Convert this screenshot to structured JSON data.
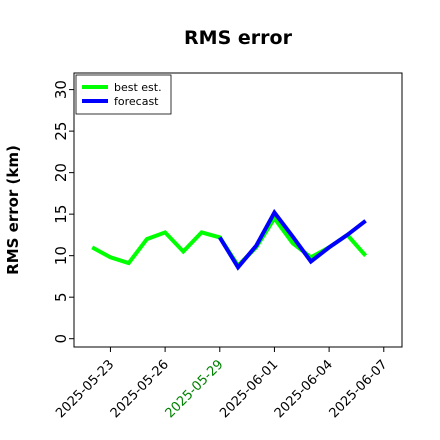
{
  "chart_data": {
    "type": "line",
    "title": "RMS error",
    "ylabel": "RMS error (km)",
    "xlabel": "",
    "ylim": [
      -1,
      32
    ],
    "xlim": [
      "2025-05-21",
      "2025-06-08"
    ],
    "yticks": [
      0,
      5,
      10,
      15,
      20,
      25,
      30
    ],
    "xticks": [
      {
        "date": "2025-05-23",
        "label": "2025-05-23",
        "color": "#000000"
      },
      {
        "date": "2025-05-26",
        "label": "2025-05-26",
        "color": "#000000"
      },
      {
        "date": "2025-05-29",
        "label": "2025-05-29",
        "color": "#008000"
      },
      {
        "date": "2025-06-01",
        "label": "2025-06-01",
        "color": "#000000"
      },
      {
        "date": "2025-06-04",
        "label": "2025-06-04",
        "color": "#000000"
      },
      {
        "date": "2025-06-07",
        "label": "2025-06-07",
        "color": "#000000"
      }
    ],
    "grid": false,
    "legend_position": "top-left",
    "series": [
      {
        "name": "best est.",
        "color": "#00ff00",
        "points": [
          {
            "x": "2025-05-22",
            "y": 11.0
          },
          {
            "x": "2025-05-23",
            "y": 9.8
          },
          {
            "x": "2025-05-24",
            "y": 9.1
          },
          {
            "x": "2025-05-25",
            "y": 12.0
          },
          {
            "x": "2025-05-26",
            "y": 12.8
          },
          {
            "x": "2025-05-27",
            "y": 10.5
          },
          {
            "x": "2025-05-28",
            "y": 12.8
          },
          {
            "x": "2025-05-29",
            "y": 12.2
          },
          {
            "x": "2025-05-30",
            "y": 8.8
          },
          {
            "x": "2025-05-31",
            "y": 11.0
          },
          {
            "x": "2025-06-01",
            "y": 14.5
          },
          {
            "x": "2025-06-02",
            "y": 11.5
          },
          {
            "x": "2025-06-03",
            "y": 9.8
          },
          {
            "x": "2025-06-04",
            "y": 11.0
          },
          {
            "x": "2025-06-05",
            "y": 12.5
          },
          {
            "x": "2025-06-06",
            "y": 10.0
          }
        ]
      },
      {
        "name": "forecast",
        "color": "#0000ff",
        "points": [
          {
            "x": "2025-05-29",
            "y": 12.2
          },
          {
            "x": "2025-05-30",
            "y": 8.6
          },
          {
            "x": "2025-05-31",
            "y": 11.2
          },
          {
            "x": "2025-06-01",
            "y": 15.2
          },
          {
            "x": "2025-06-02",
            "y": 12.3
          },
          {
            "x": "2025-06-03",
            "y": 9.3
          },
          {
            "x": "2025-06-04",
            "y": 11.0
          },
          {
            "x": "2025-06-05",
            "y": 12.5
          },
          {
            "x": "2025-06-06",
            "y": 14.2
          }
        ]
      }
    ]
  }
}
